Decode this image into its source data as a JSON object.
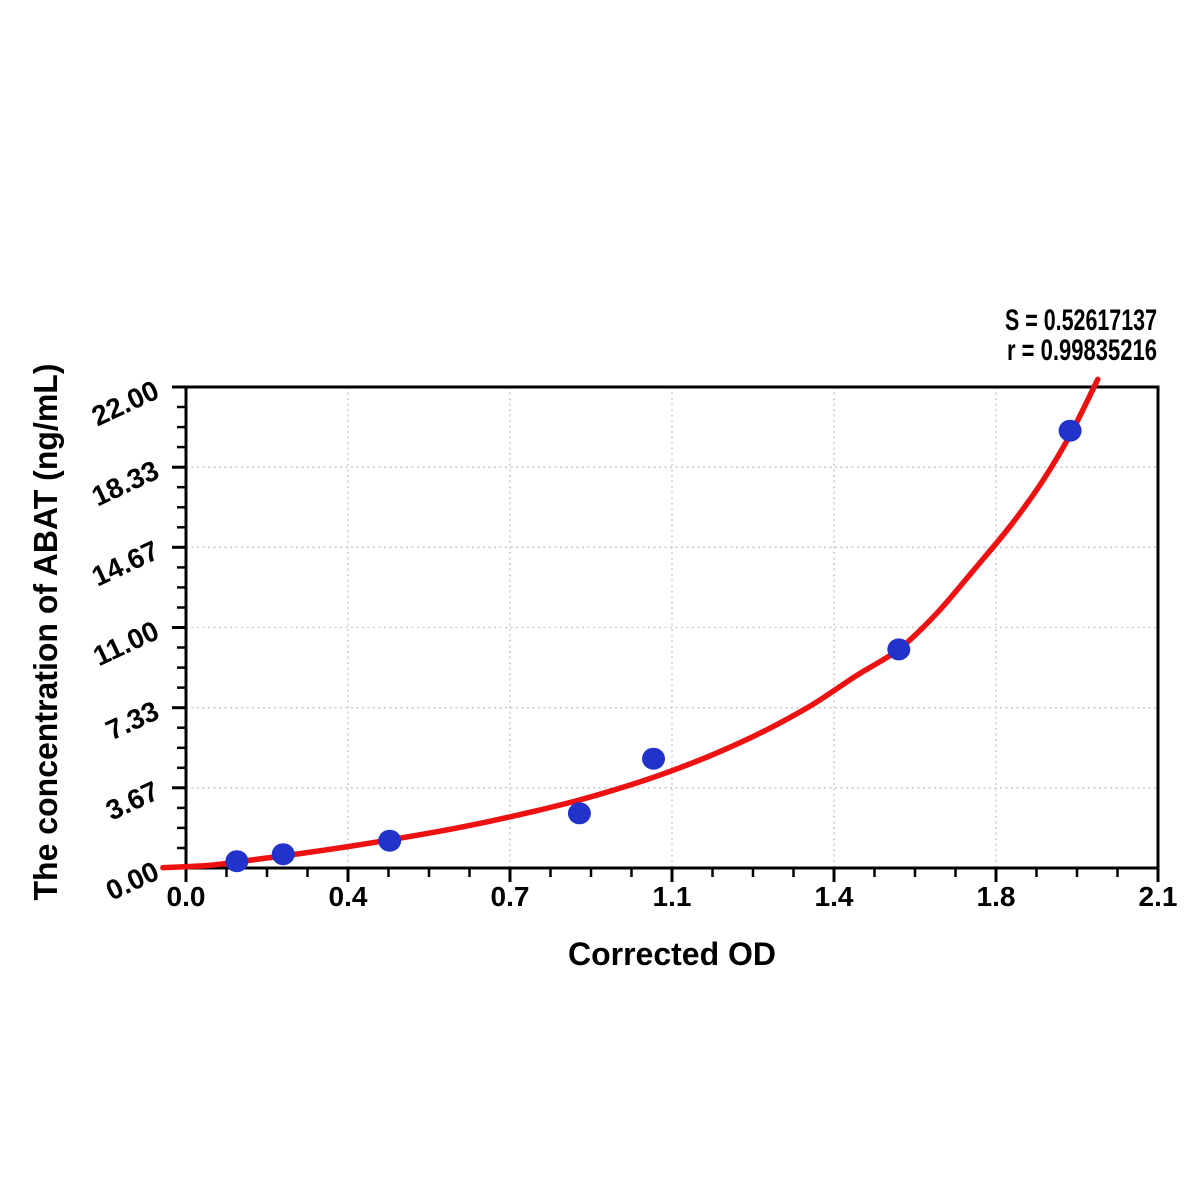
{
  "stats": {
    "s": "S = 0.52617137",
    "r": "r = 0.99835216"
  },
  "chart_data": {
    "type": "scatter",
    "title": "",
    "xlabel": "Corrected OD",
    "ylabel": "The concentration of ABAT (ng/mL)",
    "xlim": [
      0,
      2.1
    ],
    "ylim": [
      0,
      22
    ],
    "x_ticks": [
      0,
      0.35,
      0.7,
      1.05,
      1.4,
      1.75,
      2.1
    ],
    "x_tick_labels": [
      "0.0",
      "0.4",
      "0.7",
      "1.1",
      "1.4",
      "1.8",
      "2.1"
    ],
    "y_ticks": [
      0,
      3.6667,
      7.3333,
      11,
      14.6667,
      18.3333,
      22
    ],
    "y_tick_labels": [
      "0.00",
      "3.67",
      "7.33",
      "11.00",
      "14.67",
      "18.33",
      "22.00"
    ],
    "minor_divisions_per_major": 4,
    "grid": {
      "show": true,
      "style": "dotted",
      "color": "#c4c4c4",
      "at": "major-ticks"
    },
    "legend": "none",
    "colors": {
      "points": "#2233cc",
      "curve": "#ee1111",
      "axes": "#000000"
    },
    "fit_stats": {
      "S": "0.52617137",
      "r": "0.99835216"
    },
    "series": [
      {
        "name": "standard-points",
        "type": "scatter",
        "color": "#2233cc",
        "points": [
          [
            0.11,
            0.31
          ],
          [
            0.21,
            0.63
          ],
          [
            0.44,
            1.25
          ],
          [
            0.85,
            2.5
          ],
          [
            1.01,
            5.0
          ],
          [
            1.54,
            10.0
          ],
          [
            1.91,
            20.0
          ]
        ]
      },
      {
        "name": "fitted-curve",
        "type": "line",
        "color": "#ee1111",
        "points": [
          [
            -0.05,
            0.02
          ],
          [
            0.05,
            0.12
          ],
          [
            0.15,
            0.39
          ],
          [
            0.25,
            0.67
          ],
          [
            0.35,
            0.98
          ],
          [
            0.45,
            1.32
          ],
          [
            0.55,
            1.69
          ],
          [
            0.65,
            2.11
          ],
          [
            0.75,
            2.58
          ],
          [
            0.85,
            3.11
          ],
          [
            0.95,
            3.73
          ],
          [
            1.05,
            4.45
          ],
          [
            1.15,
            5.29
          ],
          [
            1.25,
            6.27
          ],
          [
            1.35,
            7.43
          ],
          [
            1.45,
            8.82
          ],
          [
            1.54,
            10.0
          ],
          [
            1.62,
            11.6
          ],
          [
            1.7,
            13.58
          ],
          [
            1.78,
            15.62
          ],
          [
            1.85,
            17.68
          ],
          [
            1.91,
            19.8
          ],
          [
            1.97,
            22.35
          ]
        ]
      }
    ]
  }
}
